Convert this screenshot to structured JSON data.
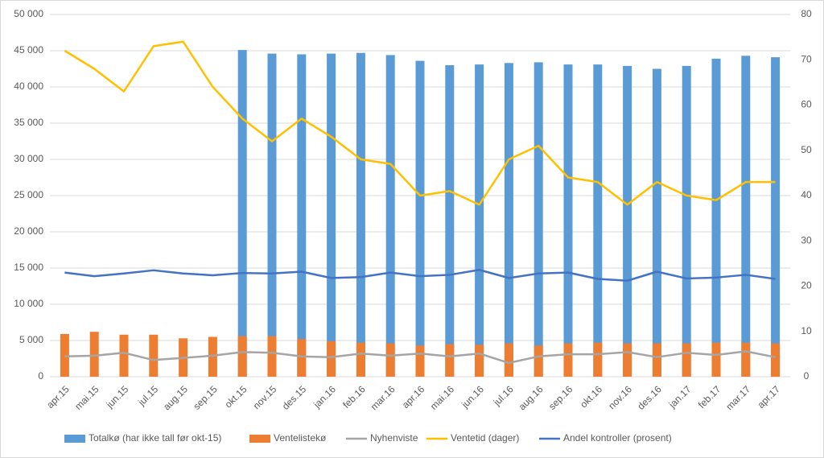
{
  "chart_data": {
    "type": "combo",
    "categories": [
      "apr.15",
      "mai.15",
      "jun.15",
      "jul.15",
      "aug.15",
      "sep.15",
      "okt.15",
      "nov.15",
      "des.15",
      "jan.16",
      "feb.16",
      "mar.16",
      "apr.16",
      "mai.16",
      "jun.16",
      "jul.16",
      "aug.16",
      "sep.16",
      "okt.16",
      "nov.16",
      "des.16",
      "jan.17",
      "feb.17",
      "mar.17",
      "apr.17"
    ],
    "ylim": [
      0,
      50000
    ],
    "yticks": [
      0,
      {
        "value": 5000,
        "label": "5 000"
      },
      {
        "value": 10000,
        "label": "10 000"
      },
      {
        "value": 15000,
        "label": "15 000"
      },
      {
        "value": 20000,
        "label": "20 000"
      },
      {
        "value": 25000,
        "label": "25 000"
      },
      {
        "value": 30000,
        "label": "30 000"
      },
      {
        "value": 35000,
        "label": "35 000"
      },
      {
        "value": 40000,
        "label": "40 000"
      },
      {
        "value": 45000,
        "label": "45 000"
      },
      {
        "value": 50000,
        "label": "50 000"
      }
    ],
    "y2lim": [
      0,
      80
    ],
    "y2ticks": [
      0,
      10,
      20,
      30,
      40,
      50,
      60,
      70,
      80
    ],
    "grid": true,
    "legend": "bottom",
    "series": [
      {
        "name": "Totalkø (har ikke tall før okt-15)",
        "kind": "bar",
        "color": "#5b9bd5",
        "values": [
          null,
          null,
          null,
          null,
          null,
          null,
          45100,
          44600,
          44500,
          44600,
          44700,
          44400,
          43600,
          43000,
          43100,
          43300,
          43400,
          43100,
          43100,
          42900,
          42500,
          42900,
          43900,
          44300,
          44100
        ]
      },
      {
        "name": "Ventelistekø",
        "kind": "bar",
        "color": "#ed7d31",
        "values": [
          5900,
          6200,
          5800,
          5800,
          5300,
          5500,
          5600,
          5600,
          5200,
          4900,
          4700,
          4600,
          4300,
          4500,
          4400,
          4600,
          4300,
          4600,
          4700,
          4600,
          4600,
          4600,
          4700,
          4700,
          4600
        ]
      },
      {
        "name": "Nyhenviste",
        "kind": "line",
        "color": "#a5a5a5",
        "values": [
          2800,
          2900,
          3300,
          2300,
          2600,
          2900,
          3400,
          3300,
          2800,
          2700,
          3200,
          2900,
          3200,
          2800,
          3200,
          1900,
          2800,
          3100,
          3100,
          3400,
          2700,
          3300,
          3000,
          3500,
          2700
        ]
      },
      {
        "name": "Ventetid (dager)",
        "kind": "line",
        "axis": "y2",
        "color": "#ffc000",
        "values": [
          72,
          68,
          63,
          73,
          74,
          64,
          57,
          52,
          57,
          53,
          48,
          47,
          40,
          41,
          38,
          48,
          51,
          44,
          43,
          38,
          43,
          40,
          39,
          43,
          43
        ]
      },
      {
        "name": "Andel kontroller (prosent)",
        "kind": "line",
        "axis": "y2",
        "color": "#4472c4",
        "values": [
          23,
          22.2,
          22.8,
          23.5,
          22.8,
          22.4,
          22.9,
          22.8,
          23.2,
          21.8,
          22,
          23,
          22.2,
          22.5,
          23.6,
          21.8,
          22.8,
          23,
          21.6,
          21.2,
          23.2,
          21.7,
          21.9,
          22.5,
          21.6
        ]
      }
    ]
  }
}
